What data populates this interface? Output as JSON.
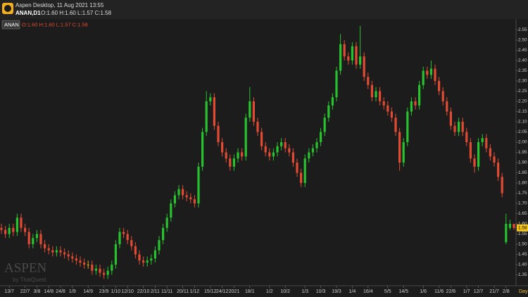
{
  "window_title": "Aspen Desktop, 11 Aug 2021 13:55",
  "symbol_period": "ANAN,D1",
  "ohlc_summary": "O:1.60 H:1.60 L:1.57 C:1.58",
  "chart_data": {
    "type": "candlestick",
    "symbol": "ANAN",
    "watermark": "ASPEN",
    "watermark_sub": "by ThaiQuest",
    "period": "Day",
    "up_color": "#27c22d",
    "down_color": "#e24b33",
    "unchanged_color": "#e0a020",
    "categories": [
      null,
      null,
      "13/7",
      null,
      null,
      null,
      "22/7",
      null,
      null,
      "3/8",
      null,
      null,
      "14/8",
      null,
      null,
      "24/8",
      null,
      null,
      "1/9",
      null,
      null,
      null,
      "14/9",
      null,
      null,
      null,
      "23/9",
      null,
      null,
      "1/10",
      null,
      null,
      "12/10",
      null,
      null,
      null,
      "22/10",
      null,
      null,
      "2/11",
      null,
      null,
      "11/11",
      null,
      null,
      null,
      "20/11",
      null,
      null,
      "1/12",
      null,
      null,
      null,
      "15/12",
      null,
      null,
      "24/12",
      null,
      null,
      "2021",
      null,
      null,
      null,
      "18/1",
      null,
      null,
      null,
      null,
      "1/2",
      null,
      null,
      null,
      "10/2",
      null,
      null,
      null,
      null,
      "1/3",
      null,
      null,
      null,
      "10/3",
      null,
      null,
      null,
      "19/3",
      null,
      null,
      null,
      "1/4",
      null,
      null,
      null,
      "16/4",
      null,
      null,
      null,
      null,
      "5/5",
      null,
      null,
      null,
      "14/5",
      null,
      null,
      null,
      null,
      "1/6",
      null,
      null,
      null,
      "11/6",
      null,
      null,
      "22/6",
      null,
      null,
      null,
      "1/7",
      null,
      null,
      "12/7",
      null,
      null,
      null,
      "21/7",
      null,
      null,
      "2/8",
      null,
      null
    ],
    "open": [
      1.58,
      1.57,
      1.55,
      1.58,
      1.56,
      1.63,
      1.58,
      1.56,
      1.5,
      1.53,
      1.55,
      1.5,
      1.48,
      1.47,
      1.46,
      1.47,
      1.46,
      1.45,
      1.44,
      1.43,
      1.42,
      1.41,
      1.4,
      1.4,
      1.37,
      1.38,
      1.36,
      1.35,
      1.37,
      1.4,
      1.5,
      1.56,
      1.55,
      1.52,
      1.49,
      1.45,
      1.42,
      1.41,
      1.42,
      1.43,
      1.47,
      1.52,
      1.58,
      1.63,
      1.7,
      1.74,
      1.77,
      1.74,
      1.73,
      1.72,
      1.7,
      1.88,
      2.05,
      2.2,
      2.22,
      2.08,
      2.0,
      1.95,
      1.92,
      1.88,
      1.92,
      1.95,
      1.93,
      2.12,
      2.2,
      2.1,
      2.05,
      1.98,
      1.95,
      1.93,
      1.95,
      1.98,
      2.0,
      1.97,
      1.95,
      1.9,
      1.85,
      1.8,
      1.92,
      1.95,
      1.97,
      2.0,
      2.05,
      2.12,
      2.18,
      2.22,
      2.35,
      2.48,
      2.42,
      2.4,
      2.47,
      2.38,
      2.42,
      2.32,
      2.28,
      2.22,
      2.25,
      2.2,
      2.18,
      2.15,
      2.12,
      2.05,
      1.9,
      2.0,
      2.15,
      2.2,
      2.18,
      2.28,
      2.35,
      2.33,
      2.36,
      2.3,
      2.25,
      2.2,
      2.15,
      2.08,
      2.05,
      2.1,
      2.05,
      2.0,
      1.92,
      1.88,
      2.0,
      2.02,
      1.97,
      1.93,
      1.9,
      1.83,
      1.51,
      1.58,
      1.6
    ],
    "high": [
      1.6,
      1.59,
      1.6,
      1.6,
      1.65,
      1.65,
      1.6,
      1.58,
      1.55,
      1.57,
      1.57,
      1.52,
      1.5,
      1.49,
      1.49,
      1.49,
      1.48,
      1.47,
      1.46,
      1.45,
      1.44,
      1.43,
      1.42,
      1.42,
      1.4,
      1.4,
      1.38,
      1.39,
      1.42,
      1.52,
      1.58,
      1.58,
      1.57,
      1.54,
      1.51,
      1.47,
      1.44,
      1.44,
      1.45,
      1.49,
      1.54,
      1.6,
      1.65,
      1.72,
      1.76,
      1.79,
      1.79,
      1.76,
      1.75,
      1.74,
      1.9,
      2.07,
      2.25,
      2.24,
      2.24,
      2.1,
      2.02,
      1.97,
      1.94,
      1.94,
      1.97,
      1.97,
      2.14,
      2.27,
      2.22,
      2.12,
      2.07,
      2.0,
      1.97,
      1.97,
      2.0,
      2.02,
      2.02,
      1.99,
      1.97,
      1.92,
      1.87,
      1.94,
      1.97,
      1.99,
      2.02,
      2.07,
      2.14,
      2.2,
      2.24,
      2.37,
      2.53,
      2.5,
      2.44,
      2.49,
      2.49,
      2.57,
      2.44,
      2.34,
      2.3,
      2.27,
      2.27,
      2.22,
      2.2,
      2.17,
      2.14,
      2.07,
      2.02,
      2.17,
      2.22,
      2.22,
      2.3,
      2.37,
      2.37,
      2.4,
      2.38,
      2.32,
      2.27,
      2.22,
      2.17,
      2.1,
      2.12,
      2.12,
      2.07,
      2.02,
      1.94,
      2.02,
      2.04,
      2.04,
      1.99,
      1.95,
      1.92,
      1.85,
      1.65,
      1.62,
      1.6
    ],
    "low": [
      1.55,
      1.53,
      1.53,
      1.54,
      1.54,
      1.56,
      1.54,
      1.48,
      1.48,
      1.51,
      1.48,
      1.46,
      1.45,
      1.44,
      1.44,
      1.44,
      1.43,
      1.42,
      1.41,
      1.4,
      1.39,
      1.38,
      1.38,
      1.35,
      1.35,
      1.34,
      1.33,
      1.33,
      1.35,
      1.38,
      1.48,
      1.53,
      1.5,
      1.47,
      1.43,
      1.4,
      1.39,
      1.39,
      1.4,
      1.41,
      1.45,
      1.5,
      1.56,
      1.61,
      1.68,
      1.72,
      1.72,
      1.71,
      1.7,
      1.68,
      1.68,
      1.86,
      2.03,
      2.18,
      2.06,
      1.98,
      1.93,
      1.9,
      1.86,
      1.86,
      1.9,
      1.91,
      1.91,
      2.1,
      2.08,
      2.03,
      1.96,
      1.93,
      1.91,
      1.91,
      1.93,
      1.96,
      1.95,
      1.93,
      1.88,
      1.83,
      1.78,
      1.78,
      1.9,
      1.93,
      1.95,
      1.98,
      2.03,
      2.1,
      2.16,
      2.2,
      2.33,
      2.4,
      2.38,
      2.38,
      2.36,
      2.36,
      2.3,
      2.26,
      2.2,
      2.2,
      2.18,
      2.16,
      2.13,
      2.1,
      2.03,
      1.86,
      1.88,
      1.98,
      2.13,
      2.16,
      2.16,
      2.26,
      2.31,
      2.31,
      2.28,
      2.23,
      2.18,
      2.13,
      2.06,
      2.03,
      2.03,
      2.03,
      1.98,
      1.9,
      1.85,
      1.86,
      1.98,
      1.95,
      1.91,
      1.88,
      1.81,
      1.73,
      1.5,
      1.57,
      1.57
    ],
    "close": [
      1.57,
      1.55,
      1.58,
      1.56,
      1.63,
      1.58,
      1.56,
      1.5,
      1.53,
      1.55,
      1.5,
      1.48,
      1.47,
      1.46,
      1.47,
      1.46,
      1.45,
      1.44,
      1.43,
      1.42,
      1.41,
      1.4,
      1.4,
      1.37,
      1.38,
      1.36,
      1.35,
      1.37,
      1.4,
      1.5,
      1.56,
      1.55,
      1.52,
      1.49,
      1.45,
      1.42,
      1.41,
      1.42,
      1.43,
      1.47,
      1.52,
      1.58,
      1.63,
      1.7,
      1.74,
      1.77,
      1.74,
      1.73,
      1.72,
      1.7,
      1.88,
      2.05,
      2.2,
      2.22,
      2.08,
      2.0,
      1.95,
      1.92,
      1.88,
      1.92,
      1.95,
      1.93,
      2.12,
      2.2,
      2.1,
      2.05,
      1.98,
      1.95,
      1.93,
      1.95,
      1.98,
      2.0,
      1.97,
      1.95,
      1.9,
      1.85,
      1.8,
      1.92,
      1.95,
      1.97,
      2.0,
      2.05,
      2.12,
      2.18,
      2.22,
      2.35,
      2.48,
      2.42,
      2.4,
      2.47,
      2.38,
      2.42,
      2.32,
      2.28,
      2.22,
      2.25,
      2.2,
      2.18,
      2.15,
      2.12,
      2.05,
      1.9,
      2.0,
      2.15,
      2.2,
      2.18,
      2.28,
      2.35,
      2.33,
      2.36,
      2.3,
      2.25,
      2.2,
      2.15,
      2.08,
      2.05,
      2.1,
      2.05,
      2.0,
      1.92,
      1.88,
      2.0,
      2.02,
      1.97,
      1.93,
      1.9,
      1.83,
      1.75,
      1.6,
      1.6,
      1.58
    ],
    "ylim": [
      1.3,
      2.6
    ],
    "yticks": [
      1.35,
      {
        "value": 1.4,
        "label": "1.40"
      },
      1.45,
      {
        "value": 1.5,
        "label": "1.50"
      },
      1.55,
      {
        "value": 1.6,
        "label": "1.60"
      },
      1.65,
      {
        "value": 1.7,
        "label": "1.70"
      },
      1.75,
      {
        "value": 1.8,
        "label": "1.80"
      },
      1.85,
      {
        "value": 1.9,
        "label": "1.90"
      },
      1.95,
      {
        "value": 2,
        "label": "2.00"
      },
      2.05,
      {
        "value": 2.1,
        "label": "2.10"
      },
      2.15,
      {
        "value": 2.2,
        "label": "2.20"
      },
      2.25,
      {
        "value": 2.3,
        "label": "2.30"
      },
      2.35,
      {
        "value": 2.4,
        "label": "2.40"
      },
      2.45,
      {
        "value": 2.5,
        "label": "2.50"
      },
      2.55
    ]
  }
}
